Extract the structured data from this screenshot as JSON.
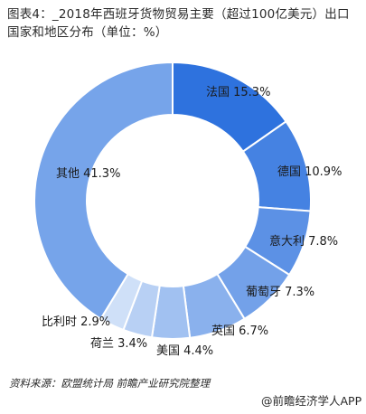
{
  "title": "图表4：_2018年西班牙货物贸易主要（超过100亿美元）出口国家和地区分布（单位：%）",
  "source": "资料来源：欧盟统计局 前瞻产业研究院整理",
  "credit": "@前瞻经济学人APP",
  "colors": {
    "start": "#2e72de",
    "end": "#cfe0f8",
    "label": "#1a1a1a",
    "border": "#ffffff"
  },
  "chart_data": {
    "type": "pie",
    "donut": true,
    "start_angle_deg": 0,
    "direction": "clockwise",
    "slices": [
      {
        "label": "法国",
        "value": 15.3,
        "text": "法国 15.3%"
      },
      {
        "label": "德国",
        "value": 10.9,
        "text": "德国 10.9%"
      },
      {
        "label": "意大利",
        "value": 7.8,
        "text": "意大利 7.8%"
      },
      {
        "label": "葡萄牙",
        "value": 7.3,
        "text": "葡萄牙 7.3%"
      },
      {
        "label": "英国",
        "value": 6.7,
        "text": "英国 6.7%"
      },
      {
        "label": "美国",
        "value": 4.4,
        "text": "美国 4.4%"
      },
      {
        "label": "荷兰",
        "value": 3.4,
        "text": "荷兰 3.4%"
      },
      {
        "label": "比利时",
        "value": 2.9,
        "text": "比利时 2.9%"
      },
      {
        "label": "其他",
        "value": 41.3,
        "text": "其他 41.3%"
      }
    ]
  }
}
